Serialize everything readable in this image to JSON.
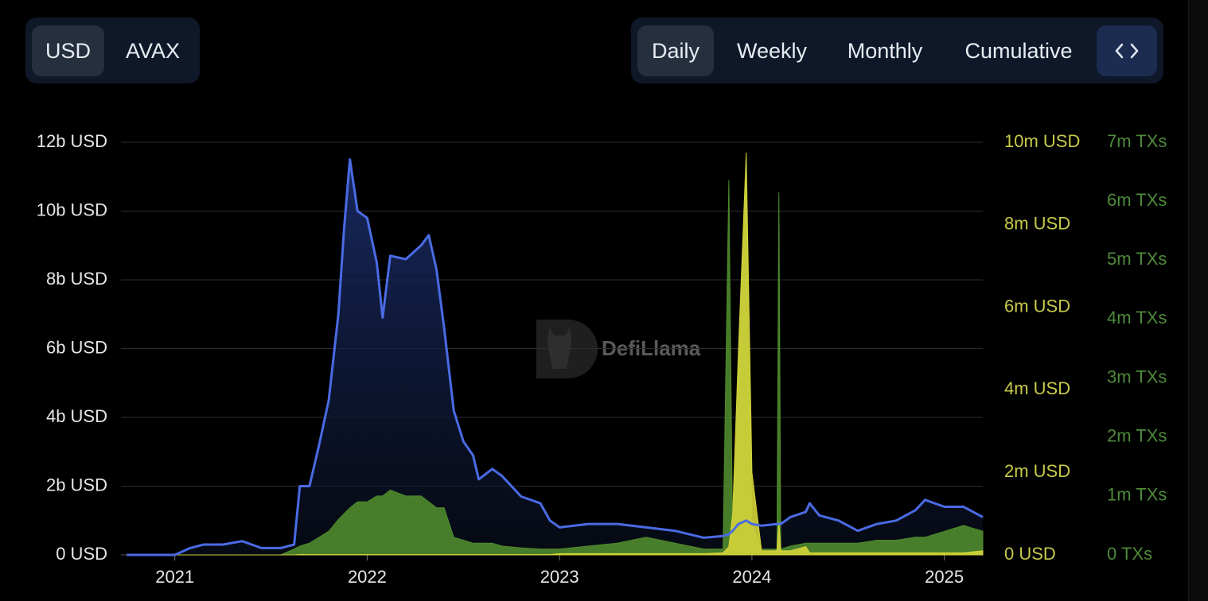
{
  "currency_toggle": [
    "USD",
    "AVAX"
  ],
  "period_toggle": [
    "Daily",
    "Weekly",
    "Monthly",
    "Cumulative"
  ],
  "chart_data": {
    "type": "area",
    "watermark": "DefiLlama",
    "x": [
      2020.75,
      2021.0,
      2021.08,
      2021.15,
      2021.25,
      2021.35,
      2021.45,
      2021.55,
      2021.62,
      2021.65,
      2021.7,
      2021.75,
      2021.8,
      2021.85,
      2021.88,
      2021.91,
      2021.95,
      2022.0,
      2022.05,
      2022.08,
      2022.12,
      2022.2,
      2022.28,
      2022.32,
      2022.36,
      2022.4,
      2022.45,
      2022.5,
      2022.55,
      2022.58,
      2022.65,
      2022.7,
      2022.8,
      2022.9,
      2022.95,
      2023.0,
      2023.15,
      2023.3,
      2023.45,
      2023.6,
      2023.75,
      2023.85,
      2023.88,
      2023.9,
      2023.93,
      2023.97,
      2024.0,
      2024.05,
      2024.13,
      2024.14,
      2024.15,
      2024.2,
      2024.28,
      2024.3,
      2024.35,
      2024.45,
      2024.55,
      2024.65,
      2024.75,
      2024.85,
      2024.9,
      2025.0,
      2025.1,
      2025.2
    ],
    "xlim": [
      2020.72,
      2025.2
    ],
    "xticks": [
      2021,
      2022,
      2023,
      2024,
      2025
    ],
    "ylim": [
      0,
      12000000000
    ],
    "yticks": [
      {
        "value": 0,
        "label": "0 USD"
      },
      {
        "value": 2000000000,
        "label": "2b USD"
      },
      {
        "value": 4000000000,
        "label": "4b USD"
      },
      {
        "value": 6000000000,
        "label": "6b USD"
      },
      {
        "value": 8000000000,
        "label": "8b USD"
      },
      {
        "value": 10000000000,
        "label": "10b USD"
      },
      {
        "value": 12000000000,
        "label": "12b USD"
      }
    ],
    "y2lim": [
      0,
      10000000
    ],
    "y2ticks": [
      {
        "value": 0,
        "label": "0 USD"
      },
      {
        "value": 2000000,
        "label": "2m USD"
      },
      {
        "value": 4000000,
        "label": "4m USD"
      },
      {
        "value": 6000000,
        "label": "6m USD"
      },
      {
        "value": 8000000,
        "label": "8m USD"
      },
      {
        "value": 10000000,
        "label": "10m USD"
      }
    ],
    "y3lim": [
      0,
      7000000
    ],
    "y3ticks": [
      {
        "value": 0,
        "label": "0 TXs"
      },
      {
        "value": 1000000,
        "label": "1m TXs"
      },
      {
        "value": 2000000,
        "label": "2m TXs"
      },
      {
        "value": 3000000,
        "label": "3m TXs"
      },
      {
        "value": 4000000,
        "label": "4m TXs"
      },
      {
        "value": 5000000,
        "label": "5m TXs"
      },
      {
        "value": 6000000,
        "label": "6m TXs"
      },
      {
        "value": 7000000,
        "label": "7m TXs"
      }
    ],
    "grid": true,
    "series": [
      {
        "color": "#4a6be4",
        "axis": "y",
        "values": [
          0,
          0,
          200000000.0,
          300000000.0,
          300000000.0,
          400000000.0,
          200000000.0,
          200000000.0,
          300000000.0,
          2000000000.0,
          2000000000.0,
          3200000000.0,
          4500000000.0,
          7000000000.0,
          9500000000.0,
          11500000000.0,
          10000000000.0,
          9800000000.0,
          8500000000.0,
          6900000000.0,
          8700000000.0,
          8600000000.0,
          9000000000.0,
          9300000000.0,
          8300000000.0,
          6600000000.0,
          4200000000.0,
          3300000000.0,
          2900000000.0,
          2200000000.0,
          2500000000.0,
          2300000000.0,
          1700000000.0,
          1500000000.0,
          1000000000.0,
          800000000.0,
          900000000.0,
          900000000.0,
          800000000.0,
          700000000.0,
          500000000.0,
          550000000.0,
          600000000.0,
          700000000.0,
          900000000.0,
          1000000000.0,
          900000000.0,
          850000000.0,
          900000000.0,
          900000000.0,
          900000000.0,
          1100000000.0,
          1250000000.0,
          1500000000.0,
          1150000000.0,
          1000000000.0,
          700000000.0,
          900000000.0,
          1000000000.0,
          1300000000.0,
          1600000000.0,
          1400000000.0,
          1400000000.0,
          1100000000.0
        ]
      },
      {
        "color": "#4f8a2e",
        "axis": "y3",
        "values": [
          0,
          0,
          0,
          0,
          0,
          0,
          0,
          0,
          100000.0,
          150000.0,
          200000.0,
          300000.0,
          400000.0,
          600000.0,
          700000.0,
          800000.0,
          900000.0,
          900000.0,
          1000000.0,
          1000000.0,
          1100000.0,
          1000000.0,
          1000000.0,
          900000.0,
          800000.0,
          800000.0,
          300000.0,
          250000.0,
          200000.0,
          200000.0,
          200000.0,
          150000.0,
          120000.0,
          100000.0,
          100000.0,
          100000.0,
          150000.0,
          200000.0,
          300000.0,
          200000.0,
          100000.0,
          100000.0,
          6360000.0,
          200000.0,
          3000000.0,
          6400000.0,
          500000.0,
          100000.0,
          100000.0,
          6150000.0,
          100000.0,
          150000.0,
          200000.0,
          200000.0,
          200000.0,
          200000.0,
          200000.0,
          250000.0,
          250000.0,
          300000.0,
          300000.0,
          400000.0,
          500000.0,
          400000.0
        ]
      },
      {
        "color": "#d4d43a",
        "axis": "y2",
        "values": [
          0,
          0,
          0,
          0,
          0,
          0,
          0,
          0,
          0,
          10000.0,
          10000.0,
          10000.0,
          10000.0,
          10000.0,
          10000.0,
          10000.0,
          10000.0,
          10000.0,
          10000.0,
          10000.0,
          10000.0,
          10000.0,
          10000.0,
          10000.0,
          10000.0,
          10000.0,
          10000.0,
          10000.0,
          10000.0,
          10000.0,
          10000.0,
          10000.0,
          10000.0,
          10000.0,
          10000.0,
          30000.0,
          30000.0,
          30000.0,
          30000.0,
          30000.0,
          30000.0,
          50000.0,
          200000.0,
          1000000.0,
          5000000.0,
          9750000.0,
          2000000.0,
          100000.0,
          100000.0,
          800000.0,
          100000.0,
          100000.0,
          200000.0,
          50000.0,
          50000.0,
          50000.0,
          50000.0,
          50000.0,
          50000.0,
          50000.0,
          50000.0,
          50000.0,
          50000.0,
          100000.0
        ]
      }
    ]
  }
}
